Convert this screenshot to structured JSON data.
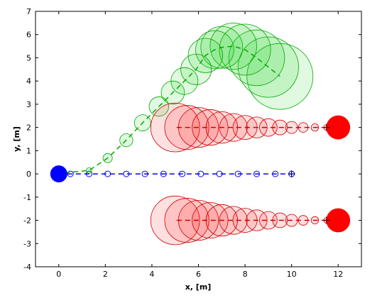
{
  "chart_data": {
    "type": "scatter",
    "title": "",
    "xlabel": "x, [m]",
    "ylabel": "y, [m]",
    "xlim": [
      -1,
      13
    ],
    "ylim": [
      -4,
      7
    ],
    "xticks": [
      0,
      2,
      4,
      6,
      8,
      10,
      12
    ],
    "yticks": [
      -4,
      -3,
      -2,
      -1,
      0,
      1,
      2,
      3,
      4,
      5,
      6,
      7
    ],
    "grid": false,
    "legend": "none",
    "colors": {
      "blue": "#0000ff",
      "red": "#ff0000",
      "red_edge": "#cc0000",
      "green": "#00aa00",
      "green_fill": "#00cc00"
    },
    "series": [
      {
        "color": "blue",
        "style": "dashed-with-circles",
        "x": [
          0,
          0.5,
          1.3,
          2.1,
          2.9,
          3.7,
          4.5,
          5.3,
          6.1,
          6.9,
          7.7,
          8.5,
          9.3,
          10.0
        ],
        "y": [
          0,
          0,
          0,
          0,
          0,
          0,
          0,
          0,
          0,
          0,
          0,
          0,
          0,
          0
        ]
      },
      {
        "color": "green",
        "style": "dashed-with-growing-circles",
        "x": [
          0.25,
          1.3,
          2.1,
          2.9,
          3.6,
          4.3,
          4.9,
          5.4,
          5.9,
          6.3,
          6.7,
          7.0,
          7.5,
          8.0,
          8.5,
          9.0,
          9.5
        ],
        "y": [
          0.05,
          0.15,
          0.68,
          1.45,
          2.2,
          2.9,
          3.5,
          4.0,
          4.5,
          5.1,
          5.35,
          5.45,
          5.5,
          5.35,
          5.0,
          4.6,
          4.2
        ],
        "r": [
          0.06,
          0.12,
          0.2,
          0.28,
          0.35,
          0.42,
          0.5,
          0.58,
          0.66,
          0.74,
          0.82,
          0.9,
          1.0,
          1.1,
          1.2,
          1.3,
          1.42
        ]
      },
      {
        "color": "red",
        "style": "dashed-with-growing-circles",
        "x": [
          11.5,
          11.0,
          10.5,
          10.0,
          9.5,
          9.0,
          8.5,
          8.0,
          7.5,
          7.0,
          6.5,
          6.0,
          5.5,
          5.0
        ],
        "y": [
          2,
          2,
          2,
          2,
          2,
          2,
          2,
          2,
          2,
          2,
          2,
          2,
          2,
          2
        ],
        "r": [
          0.12,
          0.16,
          0.21,
          0.26,
          0.32,
          0.38,
          0.45,
          0.52,
          0.6,
          0.68,
          0.77,
          0.86,
          0.95,
          1.05
        ]
      },
      {
        "color": "red",
        "style": "dashed-with-growing-circles",
        "x": [
          11.5,
          11.0,
          10.5,
          10.0,
          9.5,
          9.0,
          8.5,
          8.0,
          7.5,
          7.0,
          6.5,
          6.0,
          5.5,
          5.0
        ],
        "y": [
          -2,
          -2,
          -2,
          -2,
          -2,
          -2,
          -2,
          -2,
          -2,
          -2,
          -2,
          -2,
          -2,
          -2
        ],
        "r": [
          0.12,
          0.16,
          0.21,
          0.26,
          0.32,
          0.38,
          0.45,
          0.52,
          0.6,
          0.68,
          0.77,
          0.86,
          0.95,
          1.05
        ]
      }
    ],
    "markers": [
      {
        "x": 0,
        "y": 0,
        "r": 0.35,
        "color": "blue"
      },
      {
        "x": 12,
        "y": 2,
        "r": 0.5,
        "color": "red"
      },
      {
        "x": 12,
        "y": -2,
        "r": 0.5,
        "color": "red"
      }
    ],
    "end_markers": [
      {
        "x": 10.0,
        "y": 0,
        "symbol": "plus",
        "color": "blue"
      },
      {
        "x": 11.5,
        "y": 2,
        "symbol": "plus",
        "color": "red"
      },
      {
        "x": 11.5,
        "y": -2,
        "symbol": "plus",
        "color": "red"
      }
    ]
  }
}
